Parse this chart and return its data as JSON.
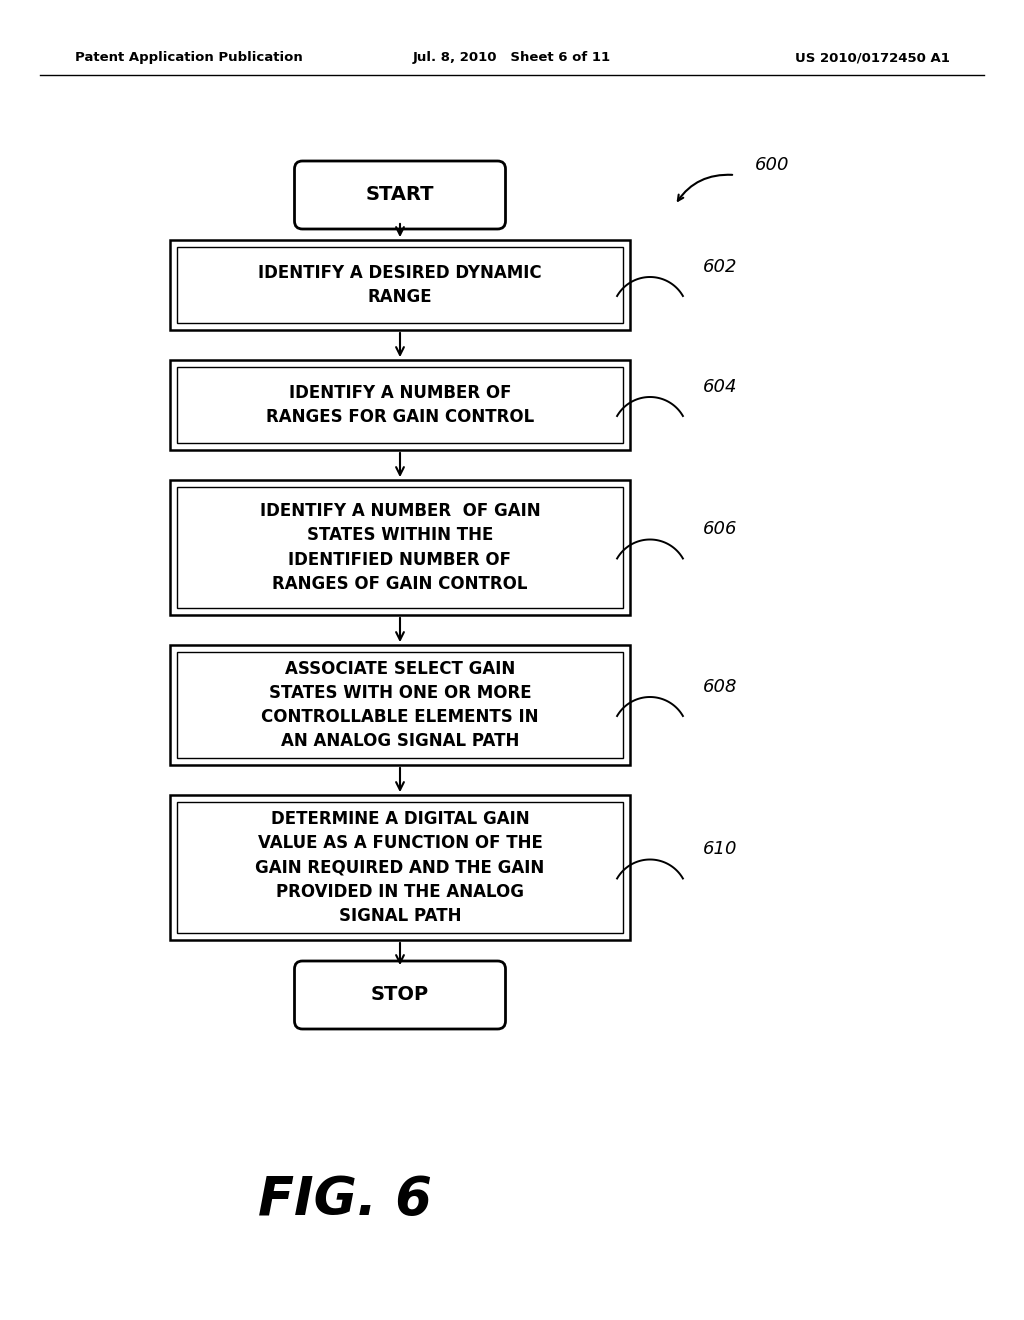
{
  "background_color": "#ffffff",
  "header_left": "Patent Application Publication",
  "header_center": "Jul. 8, 2010   Sheet 6 of 11",
  "header_right": "US 2010/0172450 A1",
  "figure_label": "FIG. 6",
  "start_text": "START",
  "stop_text": "STOP",
  "diagram_label": "600",
  "steps": [
    {
      "text": "IDENTIFY A DESIRED DYNAMIC\nRANGE",
      "label": "602"
    },
    {
      "text": "IDENTIFY A NUMBER OF\nRANGES FOR GAIN CONTROL",
      "label": "604"
    },
    {
      "text": "IDENTIFY A NUMBER  OF GAIN\nSTATES WITHIN THE\nIDENTIFIED NUMBER OF\nRANGES OF GAIN CONTROL",
      "label": "606"
    },
    {
      "text": "ASSOCIATE SELECT GAIN\nSTATES WITH ONE OR MORE\nCONTROLLABLE ELEMENTS IN\nAN ANALOG SIGNAL PATH",
      "label": "608"
    },
    {
      "text": "DETERMINE A DIGITAL GAIN\nVALUE AS A FUNCTION OF THE\nGAIN REQUIRED AND THE GAIN\nPROVIDED IN THE ANALOG\nSIGNAL PATH",
      "label": "610"
    }
  ]
}
